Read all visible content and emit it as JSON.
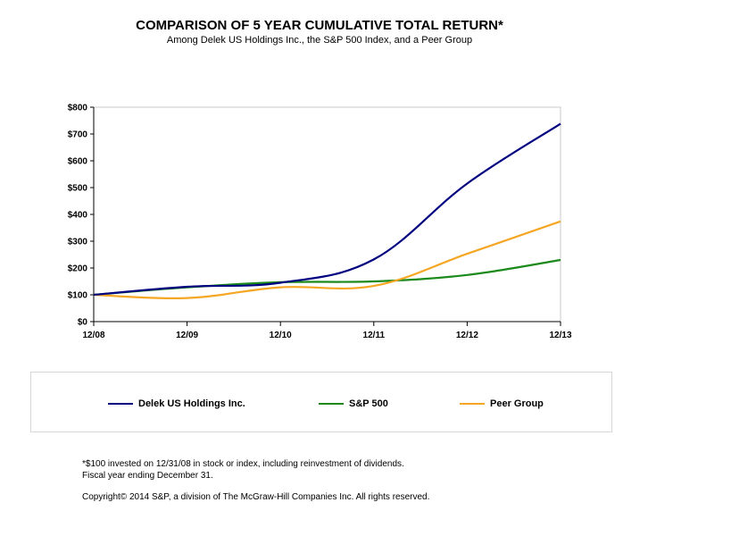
{
  "title": "COMPARISON OF 5 YEAR CUMULATIVE TOTAL RETURN*",
  "subtitle": "Among Delek US Holdings Inc., the S&P 500 Index, and a Peer Group",
  "colors": {
    "delek": "#000080",
    "sp500": "#1b8a1b",
    "peer": "#f5a623",
    "grid_border": "#c8c8c8"
  },
  "chart_data": {
    "type": "line",
    "categories": [
      "12/08",
      "12/09",
      "12/10",
      "12/11",
      "12/12",
      "12/13"
    ],
    "y_ticks": [
      "$0",
      "$100",
      "$200",
      "$300",
      "$400",
      "$500",
      "$600",
      "$700",
      "$800"
    ],
    "ylim": [
      0,
      800
    ],
    "grid": false,
    "legend_position": "bottom",
    "series": [
      {
        "name": "Delek US Holdings Inc.",
        "color": "#000080",
        "values": [
          100,
          130,
          145,
          232,
          515,
          738
        ]
      },
      {
        "name": "S&P 500",
        "color": "#1b8a1b",
        "values": [
          100,
          128,
          147,
          150,
          174,
          230
        ]
      },
      {
        "name": "Peer Group",
        "color": "#f5a623",
        "values": [
          100,
          88,
          128,
          133,
          253,
          374
        ]
      }
    ]
  },
  "legend": [
    {
      "label": "Delek US Holdings Inc.",
      "color": "#000080"
    },
    {
      "label": "S&P 500",
      "color": "#1b8a1b"
    },
    {
      "label": "Peer Group",
      "color": "#f5a623"
    }
  ],
  "footnotes": {
    "line1": "*$100 invested on 12/31/08 in stock or index, including reinvestment of dividends.",
    "line2": "Fiscal year ending December 31.",
    "copyright": "Copyright© 2014 S&P, a division of The McGraw-Hill Companies Inc. All rights reserved."
  }
}
